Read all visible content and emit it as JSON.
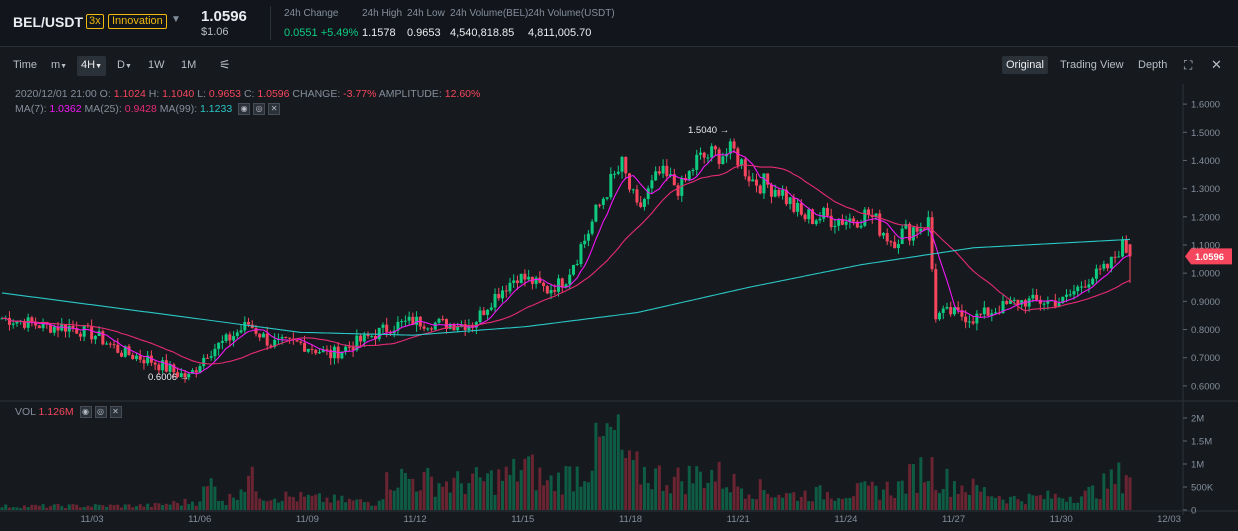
{
  "header": {
    "pair": "BEL/USDT",
    "leverage": "3x",
    "tag": "Innovation",
    "price": "1.0596",
    "fiat_price": "$1.06",
    "stats": [
      {
        "label": "24h Change",
        "value": "0.0551 +5.49%"
      },
      {
        "label": "24h High",
        "value": "1.1578"
      },
      {
        "label": "24h Low",
        "value": "0.9653"
      },
      {
        "label": "24h Volume(BEL)",
        "value": "4,540,818.85"
      },
      {
        "label": "24h Volume(USDT)",
        "value": "4,811,005.70"
      }
    ]
  },
  "toolbar": {
    "time": "Time",
    "minute": "m",
    "h4": "4H",
    "day": "D",
    "week": "1W",
    "month": "1M",
    "views": [
      "Original",
      "Trading View",
      "Depth"
    ]
  },
  "ohlc": {
    "date": "2020/12/01 21:00",
    "o_label": "O:",
    "o": "1.1024",
    "h_label": "H:",
    "h": "1.1040",
    "l_label": "L:",
    "l": "0.9653",
    "c_label": "C:",
    "c": "1.0596",
    "change_label": "CHANGE:",
    "change": "-3.77%",
    "amp_label": "AMPLITUDE:",
    "amp": "12.60%"
  },
  "ma": {
    "ma7_label": "MA(7):",
    "ma7": "1.0362",
    "ma25_label": "MA(25):",
    "ma25": "0.9428",
    "ma99_label": "MA(99):",
    "ma99": "1.1233"
  },
  "vol": {
    "label": "VOL",
    "value": "1.126M"
  },
  "chart_data": {
    "type": "candlestick",
    "interval": "4H",
    "price_axis_ticks": [
      "1.6000",
      "1.5000",
      "1.4000",
      "1.3000",
      "1.2000",
      "1.1000",
      "1.0000",
      "0.9000",
      "0.8000",
      "0.7000",
      "0.6000"
    ],
    "volume_axis_ticks": [
      "2M",
      "1.5M",
      "1M",
      "500K",
      "0"
    ],
    "date_ticks": [
      "11/03",
      "11/06",
      "11/09",
      "11/12",
      "11/15",
      "11/18",
      "11/21",
      "11/24",
      "11/27",
      "11/30",
      "12/03"
    ],
    "last_price_label": "1.0596",
    "high_annotation": "1.5040",
    "low_annotation": "0.6006",
    "ylim": [
      0.55,
      1.65
    ],
    "series_colors": {
      "up": "#0ecb81",
      "down": "#f6465d",
      "ma7": "#f116f5",
      "ma25": "#e62a74",
      "ma99": "#2ac6c6"
    },
    "close_anchors": [
      [
        0,
        0.84
      ],
      [
        5,
        0.83
      ],
      [
        12,
        0.81
      ],
      [
        18,
        0.81
      ],
      [
        25,
        0.78
      ],
      [
        32,
        0.72
      ],
      [
        40,
        0.69
      ],
      [
        46,
        0.65
      ],
      [
        50,
        0.63
      ],
      [
        55,
        0.72
      ],
      [
        60,
        0.76
      ],
      [
        66,
        0.82
      ],
      [
        72,
        0.75
      ],
      [
        80,
        0.75
      ],
      [
        88,
        0.71
      ],
      [
        96,
        0.76
      ],
      [
        104,
        0.81
      ],
      [
        110,
        0.83
      ],
      [
        118,
        0.82
      ],
      [
        126,
        0.82
      ],
      [
        132,
        0.92
      ],
      [
        138,
        0.99
      ],
      [
        142,
        0.97
      ],
      [
        146,
        0.94
      ],
      [
        150,
        0.97
      ],
      [
        156,
        1.12
      ],
      [
        162,
        1.3
      ],
      [
        166,
        1.38
      ],
      [
        170,
        1.22
      ],
      [
        176,
        1.35
      ],
      [
        182,
        1.3
      ],
      [
        186,
        1.4
      ],
      [
        190,
        1.42
      ],
      [
        196,
        1.43
      ],
      [
        201,
        1.33
      ],
      [
        208,
        1.3
      ],
      [
        214,
        1.2
      ],
      [
        220,
        1.2
      ],
      [
        226,
        1.19
      ],
      [
        232,
        1.21
      ],
      [
        238,
        1.12
      ],
      [
        244,
        1.16
      ],
      [
        248,
        1.18
      ],
      [
        250,
        0.85
      ],
      [
        254,
        0.86
      ],
      [
        260,
        0.84
      ],
      [
        266,
        0.87
      ],
      [
        272,
        0.9
      ],
      [
        278,
        0.9
      ],
      [
        284,
        0.9
      ],
      [
        290,
        0.97
      ],
      [
        296,
        1.02
      ],
      [
        300,
        1.1
      ],
      [
        302,
        1.06
      ]
    ],
    "ma99_anchors": [
      [
        0,
        0.93
      ],
      [
        40,
        0.86
      ],
      [
        80,
        0.79
      ],
      [
        110,
        0.78
      ],
      [
        140,
        0.81
      ],
      [
        170,
        0.86
      ],
      [
        200,
        0.95
      ],
      [
        230,
        1.03
      ],
      [
        260,
        1.09
      ],
      [
        302,
        1.12
      ]
    ],
    "volume_anchors": [
      [
        0,
        0.05
      ],
      [
        40,
        0.06
      ],
      [
        52,
        0.12
      ],
      [
        56,
        0.35
      ],
      [
        60,
        0.1
      ],
      [
        66,
        0.45
      ],
      [
        70,
        0.2
      ],
      [
        100,
        0.1
      ],
      [
        104,
        0.45
      ],
      [
        120,
        0.35
      ],
      [
        130,
        0.4
      ],
      [
        136,
        0.45
      ],
      [
        140,
        0.6
      ],
      [
        146,
        0.35
      ],
      [
        156,
        0.55
      ],
      [
        160,
        0.85
      ],
      [
        164,
        1.0
      ],
      [
        168,
        0.55
      ],
      [
        180,
        0.4
      ],
      [
        190,
        0.5
      ],
      [
        196,
        0.35
      ],
      [
        210,
        0.2
      ],
      [
        230,
        0.25
      ],
      [
        240,
        0.3
      ],
      [
        248,
        0.6
      ],
      [
        252,
        0.4
      ],
      [
        270,
        0.15
      ],
      [
        290,
        0.2
      ],
      [
        298,
        0.4
      ],
      [
        302,
        0.55
      ]
    ]
  }
}
